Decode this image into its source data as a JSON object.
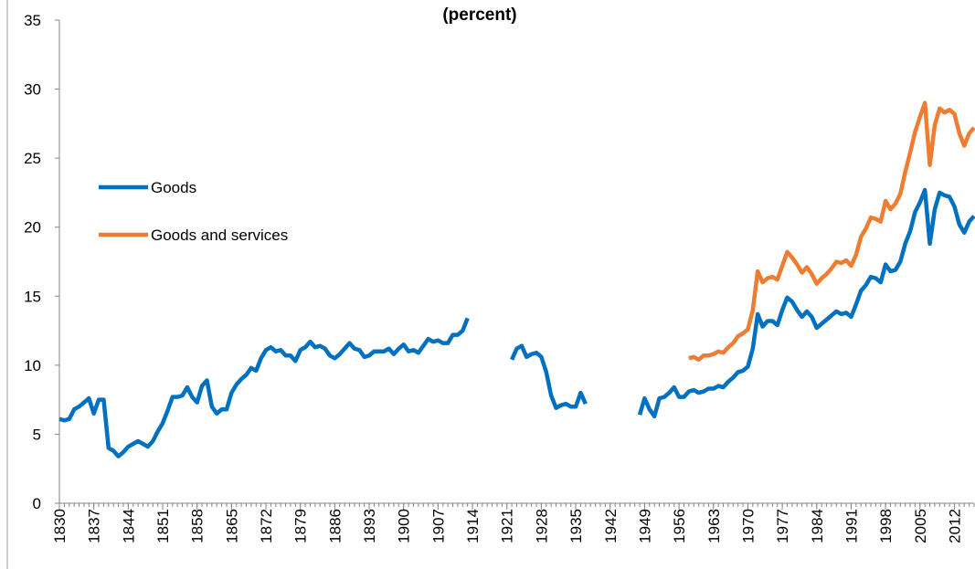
{
  "chart_data": {
    "type": "line",
    "title": "(percent)",
    "xlim": [
      1830,
      2016
    ],
    "xticks": [
      1830,
      1837,
      1844,
      1851,
      1858,
      1865,
      1872,
      1879,
      1886,
      1893,
      1900,
      1907,
      1914,
      1921,
      1928,
      1935,
      1942,
      1949,
      1956,
      1963,
      1970,
      1977,
      1984,
      1991,
      1998,
      2005,
      2012
    ],
    "ylim": [
      0,
      35
    ],
    "yticks": [
      0,
      5,
      10,
      15,
      20,
      25,
      30,
      35
    ],
    "legend": "left",
    "series": [
      {
        "name": "Goods",
        "color": "#0070c0",
        "x": [
          1830,
          1831,
          1832,
          1833,
          1834,
          1835,
          1836,
          1837,
          1838,
          1839,
          1840,
          1841,
          1842,
          1843,
          1844,
          1845,
          1846,
          1847,
          1848,
          1849,
          1850,
          1851,
          1852,
          1853,
          1854,
          1855,
          1856,
          1857,
          1858,
          1859,
          1860,
          1861,
          1862,
          1863,
          1864,
          1865,
          1866,
          1867,
          1868,
          1869,
          1870,
          1871,
          1872,
          1873,
          1874,
          1875,
          1876,
          1877,
          1878,
          1879,
          1880,
          1881,
          1882,
          1883,
          1884,
          1885,
          1886,
          1887,
          1888,
          1889,
          1890,
          1891,
          1892,
          1893,
          1894,
          1895,
          1896,
          1897,
          1898,
          1899,
          1900,
          1901,
          1902,
          1903,
          1904,
          1905,
          1906,
          1907,
          1908,
          1909,
          1910,
          1911,
          1912,
          1913,
          1914,
          1915,
          1916,
          1917,
          1918,
          1919,
          1920,
          1921,
          1922,
          1923,
          1924,
          1925,
          1926,
          1927,
          1928,
          1929,
          1930,
          1931,
          1932,
          1933,
          1934,
          1935,
          1936,
          1937,
          1938,
          1939,
          1940,
          1941,
          1942,
          1943,
          1944,
          1945,
          1946,
          1947,
          1948,
          1949,
          1950,
          1951,
          1952,
          1953,
          1954,
          1955,
          1956,
          1957,
          1958,
          1959,
          1960,
          1961,
          1962,
          1963,
          1964,
          1965,
          1966,
          1967,
          1968,
          1969,
          1970,
          1971,
          1972,
          1973,
          1974,
          1975,
          1976,
          1977,
          1978,
          1979,
          1980,
          1981,
          1982,
          1983,
          1984,
          1985,
          1986,
          1987,
          1988,
          1989,
          1990,
          1991,
          1992,
          1993,
          1994,
          1995,
          1996,
          1997,
          1998,
          1999,
          2000,
          2001,
          2002,
          2003,
          2004,
          2005,
          2006,
          2007,
          2008,
          2009,
          2010,
          2011,
          2012,
          2013,
          2014,
          2015,
          2016
        ],
        "values": [
          6.1,
          6.0,
          6.1,
          6.8,
          7.0,
          7.3,
          7.6,
          6.5,
          7.5,
          7.5,
          4.0,
          3.8,
          3.4,
          3.7,
          4.1,
          4.3,
          4.5,
          4.3,
          4.1,
          4.5,
          5.2,
          5.8,
          6.7,
          7.7,
          7.7,
          7.8,
          8.4,
          7.7,
          7.3,
          8.5,
          8.9,
          7.0,
          6.5,
          6.8,
          6.8,
          8.0,
          8.6,
          9.0,
          9.3,
          9.8,
          9.6,
          10.5,
          11.1,
          11.3,
          11.0,
          11.1,
          10.7,
          10.7,
          10.3,
          11.1,
          11.3,
          11.7,
          11.3,
          11.4,
          11.2,
          10.7,
          10.5,
          10.8,
          11.2,
          11.6,
          11.2,
          11.1,
          10.6,
          10.7,
          11.0,
          11.0,
          11.0,
          11.2,
          10.8,
          11.2,
          11.5,
          11.0,
          11.1,
          10.9,
          11.4,
          11.9,
          11.7,
          11.8,
          11.6,
          11.6,
          12.2,
          12.2,
          12.5,
          13.4,
          null,
          null,
          null,
          null,
          null,
          null,
          null,
          null,
          10.4,
          11.2,
          11.4,
          10.6,
          10.8,
          10.9,
          10.6,
          9.5,
          7.8,
          6.9,
          7.1,
          7.2,
          7.0,
          7.0,
          8.0,
          7.2,
          null,
          null,
          null,
          null,
          null,
          null,
          null,
          null,
          null,
          null,
          6.4,
          7.6,
          6.8,
          6.3,
          7.6,
          7.7,
          8.0,
          8.4,
          7.7,
          7.7,
          8.1,
          8.2,
          8.0,
          8.1,
          8.3,
          8.3,
          8.5,
          8.4,
          8.8,
          9.1,
          9.5,
          9.6,
          9.9,
          11.2,
          13.7,
          12.8,
          13.2,
          13.2,
          12.9,
          14.0,
          14.9,
          14.6,
          14.0,
          13.5,
          13.9,
          13.5,
          12.7,
          13.0,
          13.3,
          13.6,
          13.9,
          13.7,
          13.8,
          13.5,
          14.4,
          15.4,
          15.8,
          16.4,
          16.3,
          16.0,
          17.3,
          16.8,
          16.9,
          17.5,
          18.8,
          19.7,
          21.1,
          21.8,
          22.7,
          18.8,
          21.3,
          22.5,
          22.3,
          22.2,
          21.5,
          20.2,
          19.6,
          20.4,
          20.8
        ]
      },
      {
        "name": "Goods and services",
        "color": "#ed7d31",
        "x": [
          1958,
          1959,
          1960,
          1961,
          1962,
          1963,
          1964,
          1965,
          1966,
          1967,
          1968,
          1969,
          1970,
          1971,
          1972,
          1973,
          1974,
          1975,
          1976,
          1977,
          1978,
          1979,
          1980,
          1981,
          1982,
          1983,
          1984,
          1985,
          1986,
          1987,
          1988,
          1989,
          1990,
          1991,
          1992,
          1993,
          1994,
          1995,
          1996,
          1997,
          1998,
          1999,
          2000,
          2001,
          2002,
          2003,
          2004,
          2005,
          2006,
          2007,
          2008,
          2009,
          2010,
          2011,
          2012,
          2013,
          2014,
          2015,
          2016
        ],
        "values": [
          10.5,
          10.6,
          10.4,
          10.7,
          10.7,
          10.8,
          11.0,
          10.9,
          11.3,
          11.6,
          12.1,
          12.3,
          12.6,
          14.0,
          16.8,
          16.0,
          16.3,
          16.4,
          16.2,
          17.2,
          18.2,
          17.8,
          17.3,
          16.7,
          17.1,
          16.6,
          15.9,
          16.3,
          16.6,
          17.0,
          17.5,
          17.4,
          17.6,
          17.2,
          18.0,
          19.3,
          19.9,
          20.7,
          20.6,
          20.4,
          21.9,
          21.3,
          21.7,
          22.4,
          24.0,
          25.4,
          26.9,
          28.0,
          29.0,
          24.5,
          27.4,
          28.6,
          28.3,
          28.5,
          28.2,
          26.8,
          25.9,
          26.8,
          27.2
        ]
      }
    ]
  }
}
